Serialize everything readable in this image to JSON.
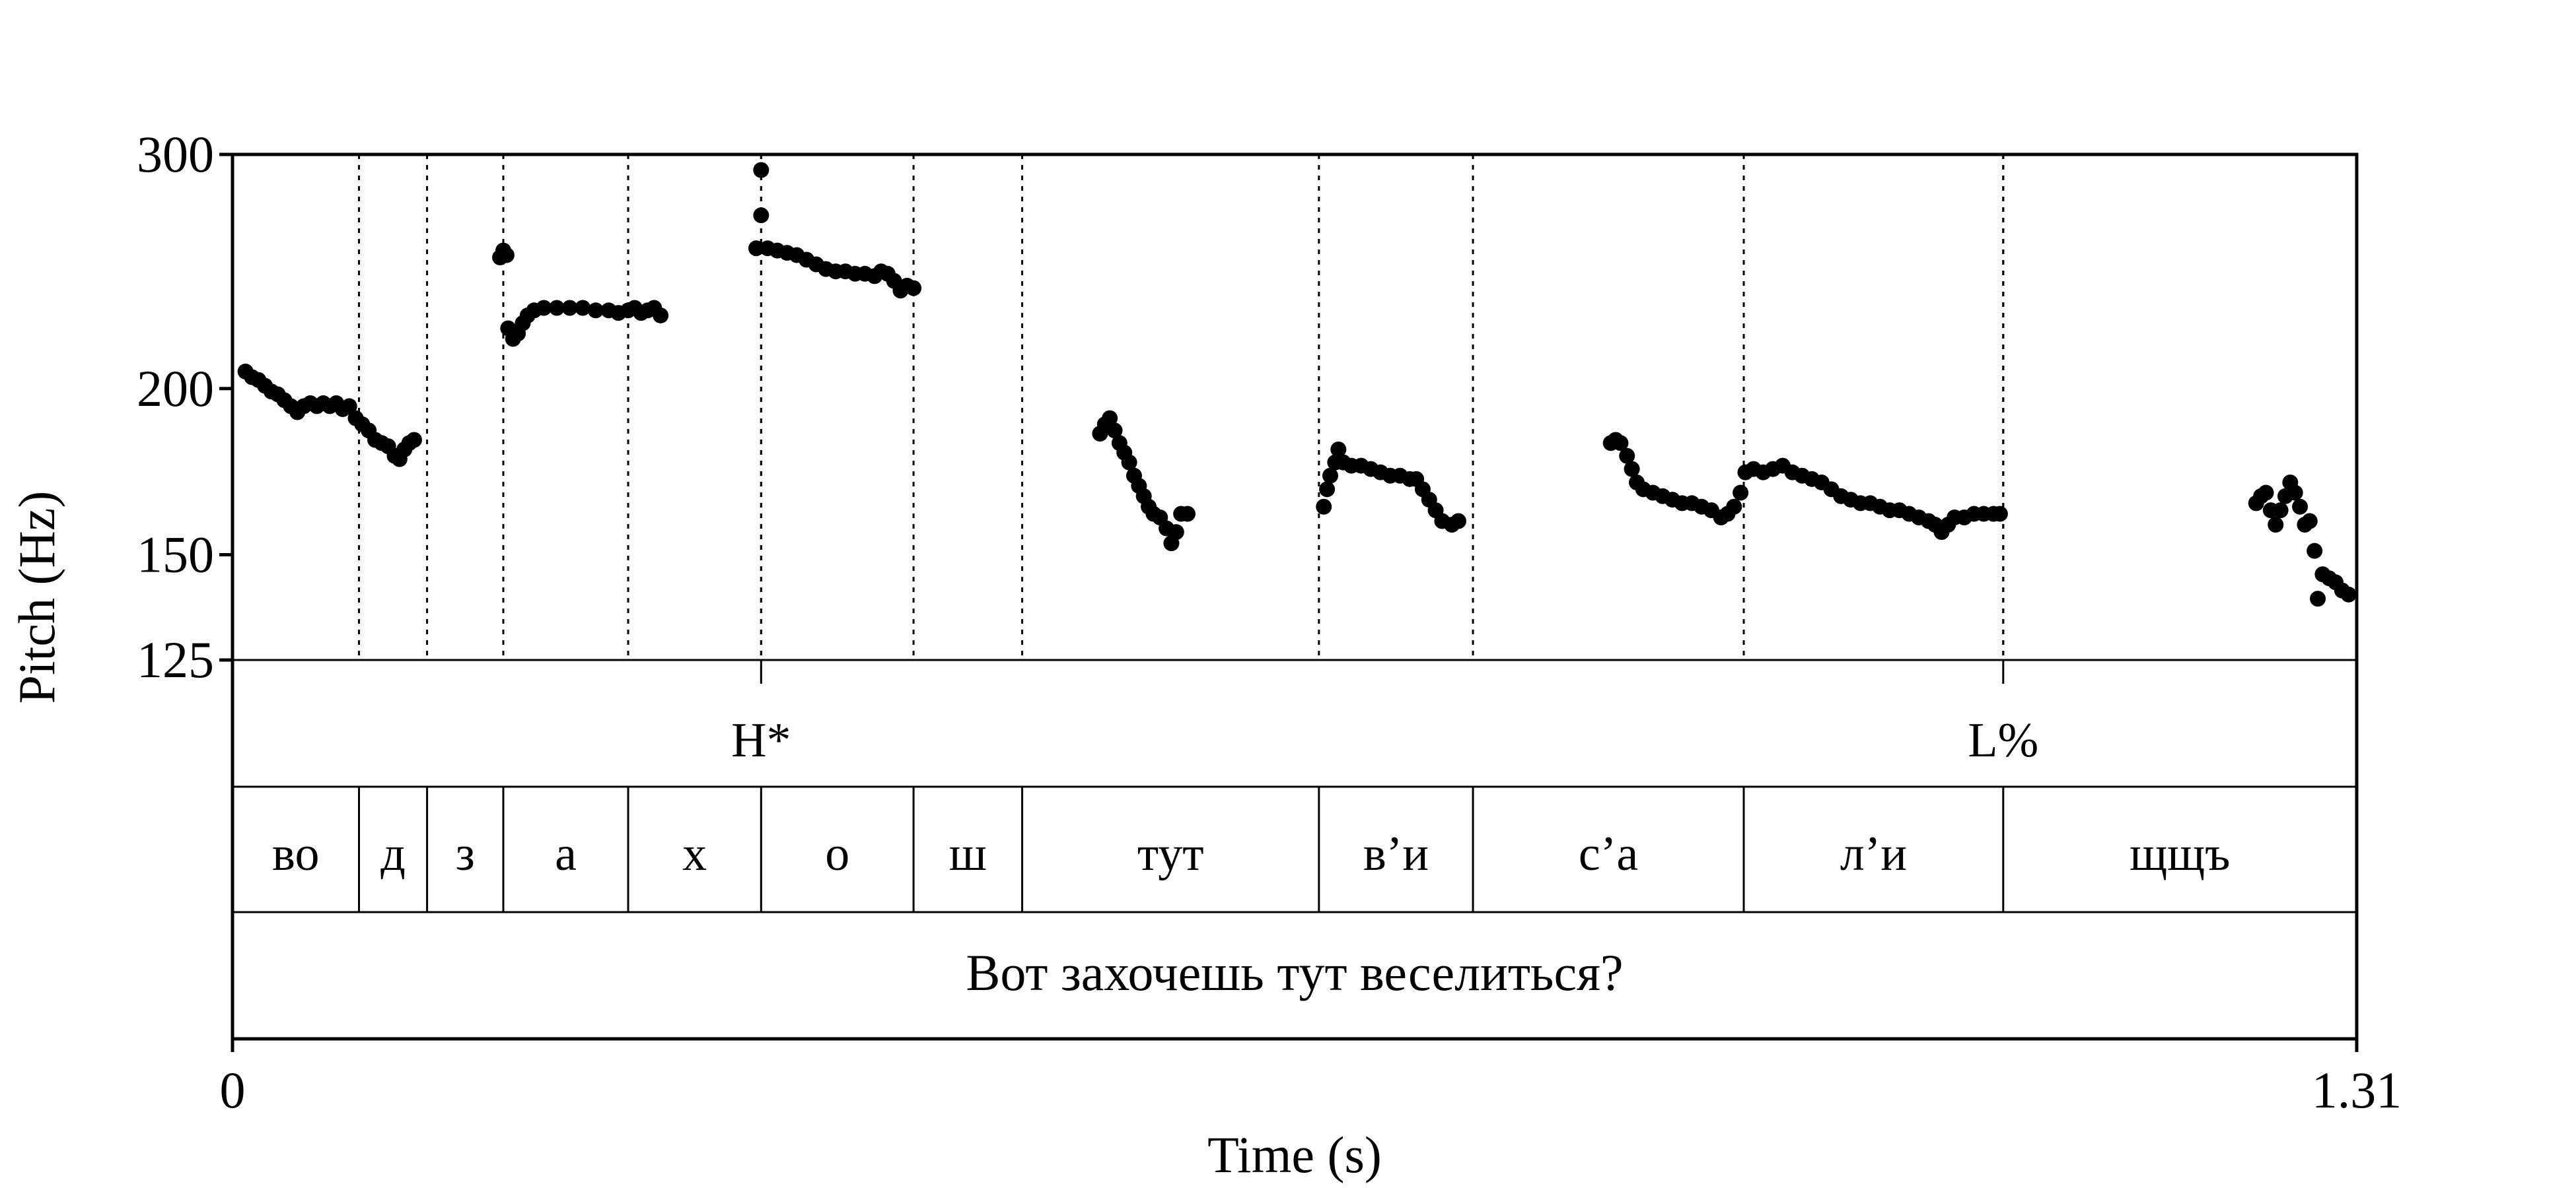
{
  "chart_data": {
    "type": "scatter",
    "xlabel": "Time (s)",
    "ylabel": "Pitch (Hz)",
    "xlim": [
      0,
      1.31
    ],
    "ylim": [
      125,
      300
    ],
    "y_scale": "log",
    "y_ticks": [
      "300",
      "200",
      "150",
      "125"
    ],
    "x_ticks": [
      "0",
      "1.31"
    ],
    "tones": [
      {
        "label": "H*",
        "t": 0.326
      },
      {
        "label": "L%",
        "t": 1.092
      }
    ],
    "segments": [
      {
        "label": "во",
        "start": 0.0,
        "end": 0.078
      },
      {
        "label": "д",
        "start": 0.078,
        "end": 0.12
      },
      {
        "label": "з",
        "start": 0.12,
        "end": 0.167
      },
      {
        "label": "а",
        "start": 0.167,
        "end": 0.244
      },
      {
        "label": "х",
        "start": 0.244,
        "end": 0.326
      },
      {
        "label": "о",
        "start": 0.326,
        "end": 0.42
      },
      {
        "label": "ш",
        "start": 0.42,
        "end": 0.487
      },
      {
        "label": "тут",
        "start": 0.487,
        "end": 0.67
      },
      {
        "label": "в’и",
        "start": 0.67,
        "end": 0.765
      },
      {
        "label": "с’а",
        "start": 0.765,
        "end": 0.932
      },
      {
        "label": "л’и",
        "start": 0.932,
        "end": 1.092
      },
      {
        "label": "щщъ",
        "start": 1.092,
        "end": 1.31
      }
    ],
    "sentence": "Вот захочешь тут веселиться?",
    "series": [
      {
        "points": [
          [
            0.008,
            206
          ],
          [
            0.012,
            204
          ],
          [
            0.016,
            203
          ],
          [
            0.02,
            201
          ],
          [
            0.024,
            199
          ],
          [
            0.028,
            198
          ],
          [
            0.032,
            196
          ],
          [
            0.036,
            194
          ],
          [
            0.04,
            192
          ],
          [
            0.044,
            194
          ],
          [
            0.048,
            195
          ],
          [
            0.052,
            194
          ],
          [
            0.056,
            195
          ],
          [
            0.06,
            194
          ],
          [
            0.064,
            195
          ],
          [
            0.068,
            193
          ],
          [
            0.072,
            194
          ],
          [
            0.076,
            190
          ],
          [
            0.08,
            188
          ],
          [
            0.084,
            186
          ],
          [
            0.088,
            183
          ],
          [
            0.092,
            182
          ],
          [
            0.096,
            181
          ],
          [
            0.1,
            178
          ],
          [
            0.103,
            177
          ],
          [
            0.106,
            180
          ],
          [
            0.109,
            182
          ],
          [
            0.112,
            183
          ],
          [
            0.165,
            251
          ],
          [
            0.167,
            254
          ],
          [
            0.169,
            252
          ],
          [
            0.17,
            222
          ],
          [
            0.173,
            218
          ],
          [
            0.176,
            220
          ],
          [
            0.179,
            224
          ],
          [
            0.182,
            227
          ],
          [
            0.186,
            229
          ],
          [
            0.192,
            230
          ],
          [
            0.2,
            230
          ],
          [
            0.208,
            230
          ],
          [
            0.216,
            230
          ],
          [
            0.224,
            229
          ],
          [
            0.232,
            229
          ],
          [
            0.238,
            228
          ],
          [
            0.244,
            229
          ],
          [
            0.248,
            230
          ],
          [
            0.252,
            228
          ],
          [
            0.256,
            229
          ],
          [
            0.26,
            230
          ],
          [
            0.264,
            227
          ],
          [
            0.326,
            292
          ],
          [
            0.326,
            270
          ],
          [
            0.323,
            255
          ],
          [
            0.33,
            255
          ],
          [
            0.336,
            254
          ],
          [
            0.342,
            253
          ],
          [
            0.348,
            252
          ],
          [
            0.354,
            250
          ],
          [
            0.36,
            248
          ],
          [
            0.366,
            246
          ],
          [
            0.372,
            245
          ],
          [
            0.378,
            245
          ],
          [
            0.384,
            244
          ],
          [
            0.39,
            244
          ],
          [
            0.396,
            243
          ],
          [
            0.4,
            245
          ],
          [
            0.404,
            244
          ],
          [
            0.408,
            241
          ],
          [
            0.412,
            237
          ],
          [
            0.416,
            239
          ],
          [
            0.42,
            238
          ],
          [
            0.535,
            185
          ],
          [
            0.538,
            188
          ],
          [
            0.541,
            190
          ],
          [
            0.544,
            186
          ],
          [
            0.547,
            182
          ],
          [
            0.55,
            179
          ],
          [
            0.553,
            176
          ],
          [
            0.556,
            172
          ],
          [
            0.559,
            169
          ],
          [
            0.562,
            166
          ],
          [
            0.565,
            163
          ],
          [
            0.568,
            161
          ],
          [
            0.572,
            160
          ],
          [
            0.576,
            157
          ],
          [
            0.579,
            153
          ],
          [
            0.582,
            156
          ],
          [
            0.585,
            161
          ],
          [
            0.589,
            161
          ],
          [
            0.673,
            163
          ],
          [
            0.675,
            168
          ],
          [
            0.677,
            172
          ],
          [
            0.68,
            176
          ],
          [
            0.682,
            180
          ],
          [
            0.685,
            176
          ],
          [
            0.69,
            175
          ],
          [
            0.696,
            175
          ],
          [
            0.702,
            174
          ],
          [
            0.708,
            173
          ],
          [
            0.714,
            172
          ],
          [
            0.72,
            172
          ],
          [
            0.726,
            171
          ],
          [
            0.73,
            171
          ],
          [
            0.734,
            168
          ],
          [
            0.738,
            165
          ],
          [
            0.742,
            162
          ],
          [
            0.746,
            159
          ],
          [
            0.752,
            158
          ],
          [
            0.756,
            159
          ],
          [
            0.85,
            182
          ],
          [
            0.853,
            183
          ],
          [
            0.856,
            182
          ],
          [
            0.86,
            178
          ],
          [
            0.863,
            174
          ],
          [
            0.866,
            170
          ],
          [
            0.87,
            168
          ],
          [
            0.876,
            167
          ],
          [
            0.882,
            166
          ],
          [
            0.888,
            165
          ],
          [
            0.894,
            164
          ],
          [
            0.9,
            164
          ],
          [
            0.906,
            163
          ],
          [
            0.912,
            162
          ],
          [
            0.918,
            160
          ],
          [
            0.922,
            161
          ],
          [
            0.926,
            163
          ],
          [
            0.93,
            167
          ],
          [
            0.933,
            173
          ],
          [
            0.938,
            174
          ],
          [
            0.944,
            173
          ],
          [
            0.95,
            174
          ],
          [
            0.956,
            175
          ],
          [
            0.962,
            173
          ],
          [
            0.968,
            172
          ],
          [
            0.974,
            171
          ],
          [
            0.98,
            170
          ],
          [
            0.986,
            168
          ],
          [
            0.992,
            166
          ],
          [
            0.998,
            165
          ],
          [
            1.004,
            164
          ],
          [
            1.01,
            164
          ],
          [
            1.016,
            163
          ],
          [
            1.022,
            162
          ],
          [
            1.028,
            162
          ],
          [
            1.034,
            161
          ],
          [
            1.04,
            160
          ],
          [
            1.046,
            159
          ],
          [
            1.05,
            158
          ],
          [
            1.054,
            156
          ],
          [
            1.058,
            158
          ],
          [
            1.062,
            160
          ],
          [
            1.068,
            160
          ],
          [
            1.074,
            161
          ],
          [
            1.08,
            161
          ],
          [
            1.086,
            161
          ],
          [
            1.09,
            161
          ],
          [
            1.248,
            164
          ],
          [
            1.251,
            166
          ],
          [
            1.254,
            167
          ],
          [
            1.257,
            162
          ],
          [
            1.26,
            158
          ],
          [
            1.263,
            162
          ],
          [
            1.266,
            166
          ],
          [
            1.269,
            170
          ],
          [
            1.272,
            167
          ],
          [
            1.275,
            163
          ],
          [
            1.278,
            158
          ],
          [
            1.281,
            159
          ],
          [
            1.284,
            151
          ],
          [
            1.286,
            139
          ],
          [
            1.289,
            145
          ],
          [
            1.293,
            144
          ],
          [
            1.297,
            143
          ],
          [
            1.301,
            141
          ],
          [
            1.305,
            140
          ]
        ]
      }
    ]
  }
}
